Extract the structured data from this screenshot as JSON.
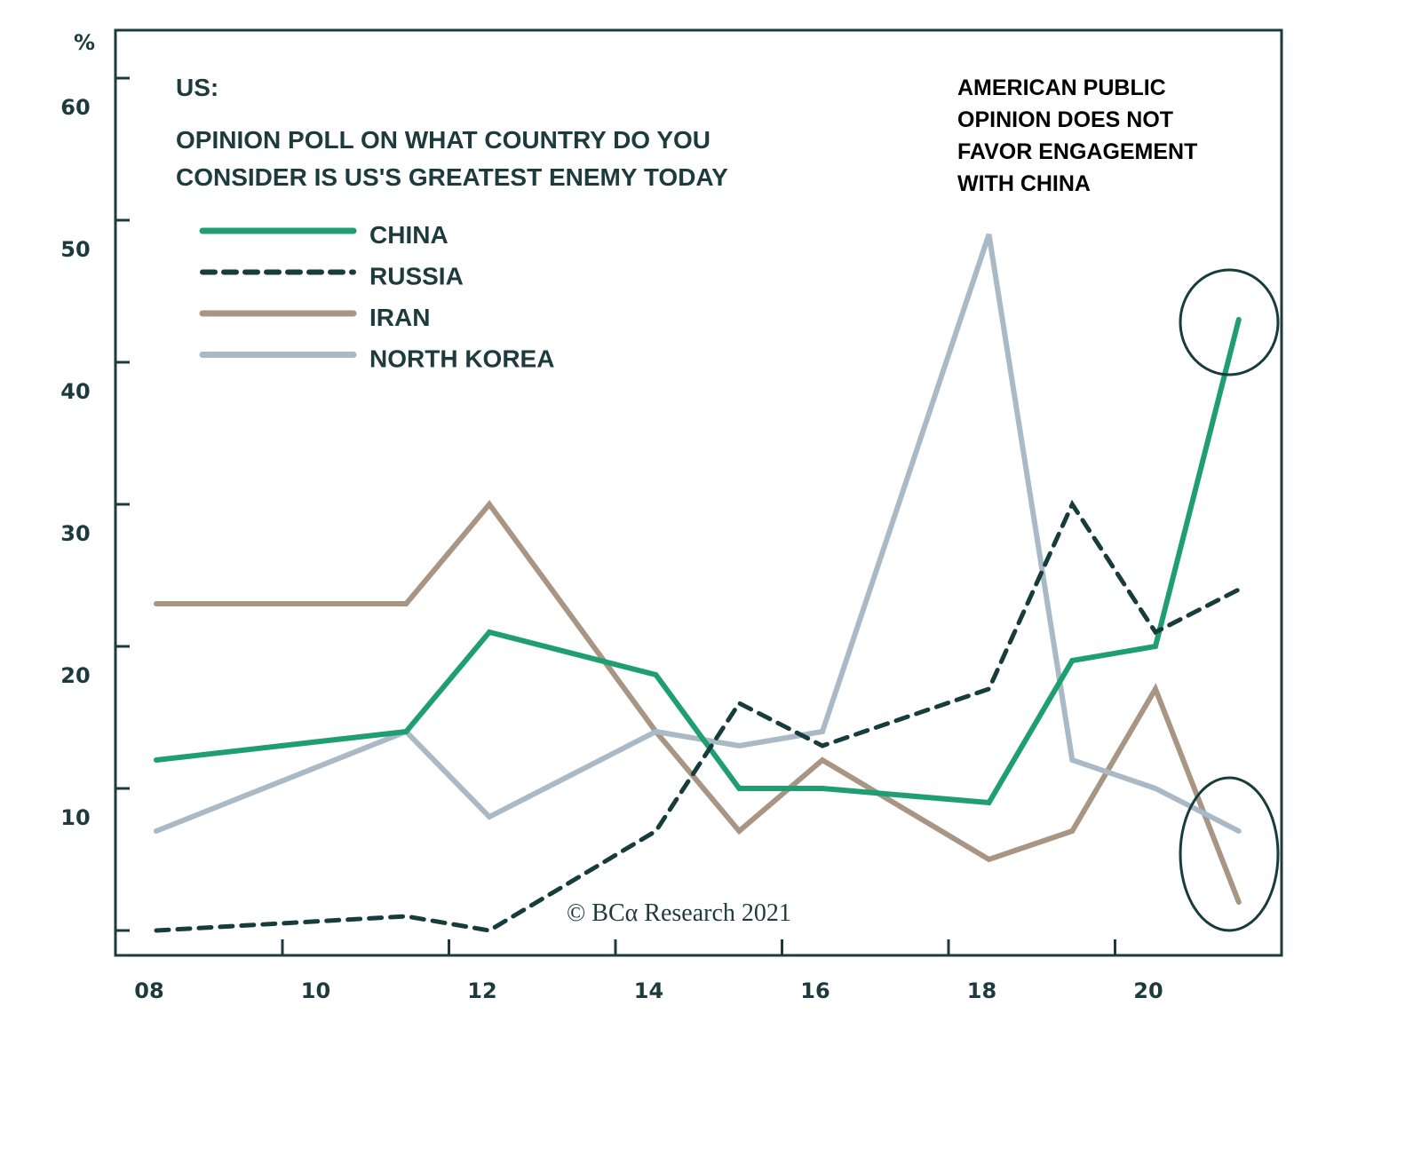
{
  "chart_data": {
    "type": "line",
    "title_prefix": "US:",
    "title_lines": [
      "OPINION POLL ON WHAT COUNTRY DO YOU",
      "CONSIDER IS US'S GREATEST ENEMY TODAY"
    ],
    "ylabel": "%",
    "xlabel": "",
    "ylim": [
      0,
      60
    ],
    "y_ticks": [
      10,
      20,
      30,
      40,
      50,
      60
    ],
    "y_tick_labels": [
      "10",
      "20",
      "30",
      "40",
      "50",
      "60"
    ],
    "xlim": [
      2008,
      2021
    ],
    "x_ticks": [
      2008,
      2010,
      2012,
      2014,
      2016,
      2018,
      2020
    ],
    "x_tick_labels": [
      "08",
      "10",
      "12",
      "14",
      "16",
      "18",
      "20"
    ],
    "x": [
      2008,
      2011,
      2012,
      2014,
      2015,
      2016,
      2018,
      2019,
      2020,
      2021
    ],
    "series": [
      {
        "name": "CHINA",
        "color": "#1f9e72",
        "style": "solid",
        "values": [
          14,
          16,
          23,
          20,
          12,
          12,
          11,
          21,
          22,
          45
        ]
      },
      {
        "name": "RUSSIA",
        "color": "#173c3c",
        "style": "dashed",
        "values": [
          2,
          3,
          2,
          9,
          18,
          15,
          19,
          32,
          23,
          26
        ]
      },
      {
        "name": "IRAN",
        "color": "#a89584",
        "style": "solid",
        "values": [
          25,
          25,
          32,
          16,
          9,
          14,
          7,
          9,
          19,
          4
        ]
      },
      {
        "name": "NORTH KOREA",
        "color": "#a9b9c5",
        "style": "solid",
        "values": [
          9,
          16,
          10,
          16,
          15,
          16,
          51,
          14,
          12,
          9
        ]
      }
    ],
    "legend_position": "top-left",
    "grid": false,
    "annotation": {
      "color": "#b5262e",
      "lines": [
        "AMERICAN PUBLIC",
        "OPINION DOES NOT",
        "FAVOR ENGAGEMENT",
        "WITH CHINA"
      ]
    },
    "highlights": [
      {
        "label": "china-2021-highlight",
        "series": "CHINA",
        "x": 2021
      },
      {
        "label": "2021-low-highlight",
        "series": "IRAN / NORTH KOREA",
        "x": 2021
      }
    ],
    "credit": "© BCα Research 2021"
  },
  "colors": {
    "axis": "#1d3b3d",
    "text": "#1d3b3d",
    "background": "#ffffff"
  }
}
